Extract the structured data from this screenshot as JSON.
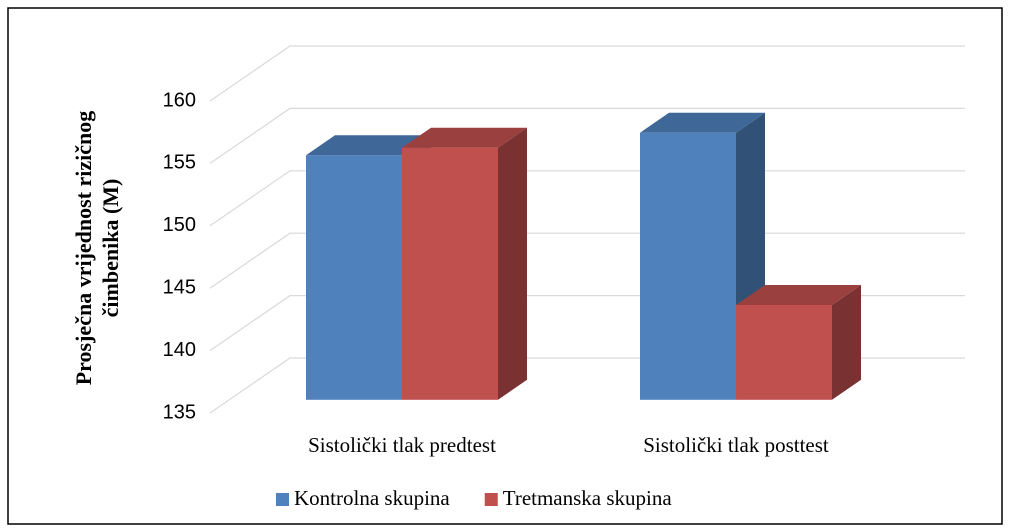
{
  "chart_data": {
    "type": "bar3d",
    "y_label": [
      "Prosječna vrijednost rizičnog",
      "čimbenika (M)"
    ],
    "categories": [
      "Sistolički tlak predtest",
      "Sistolički tlak posttest"
    ],
    "series": [
      {
        "name": "Kontrolna skupina",
        "color": "#4f81bd",
        "values": [
          154.6,
          156.4
        ]
      },
      {
        "name": "Tretmanska skupina",
        "color": "#c0504d",
        "values": [
          155.2,
          142.6
        ]
      }
    ],
    "ylim": [
      135,
      160
    ],
    "yticks": [
      135,
      140,
      145,
      150,
      155,
      160
    ],
    "grid": true,
    "legend": "bottom"
  }
}
